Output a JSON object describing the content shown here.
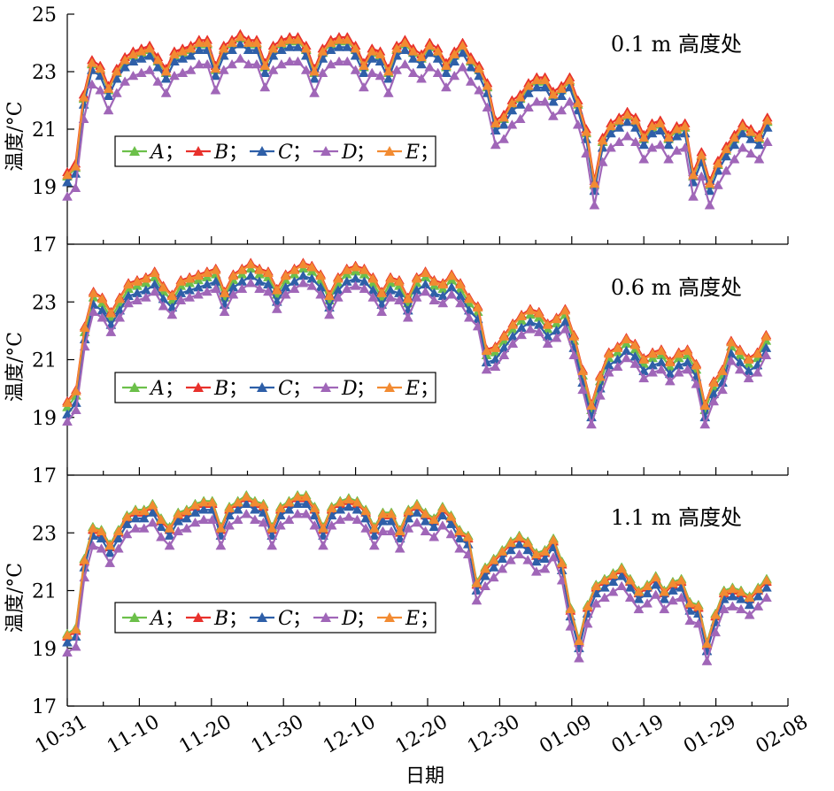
{
  "x_axis": {
    "label": "日期",
    "ticks": [
      "10-31",
      "11-10",
      "11-20",
      "11-30",
      "12-10",
      "12-20",
      "12-30",
      "01-09",
      "01-19",
      "01-29",
      "02-08"
    ]
  },
  "legend_separator": "；",
  "colors": {
    "A": "#6cc04a",
    "B": "#e8312c",
    "C": "#2e5fa8",
    "D": "#a066b8",
    "E": "#f28b32"
  },
  "chart_data": [
    {
      "type": "line",
      "title": "0.1 m 高度处",
      "ylabel": "温度/°C",
      "ylim": [
        17,
        25
      ],
      "yticks": [
        17,
        19,
        21,
        23,
        25
      ],
      "x_range_days": [
        0,
        100
      ],
      "base": [
        19.3,
        19.6,
        22.0,
        23.2,
        23.0,
        22.3,
        22.9,
        23.3,
        23.5,
        23.6,
        23.7,
        23.3,
        22.9,
        23.5,
        23.6,
        23.7,
        23.9,
        23.9,
        23.0,
        23.7,
        23.9,
        24.1,
        23.9,
        23.9,
        23.1,
        23.7,
        23.9,
        24.0,
        24.0,
        23.7,
        22.9,
        23.6,
        23.9,
        24.0,
        24.0,
        23.7,
        23.1,
        23.6,
        23.5,
        22.9,
        23.7,
        23.9,
        23.6,
        23.4,
        23.8,
        23.6,
        23.1,
        23.5,
        23.8,
        23.3,
        23.0,
        22.4,
        21.1,
        21.3,
        21.8,
        22.0,
        22.4,
        22.6,
        22.6,
        22.1,
        22.3,
        22.6,
        21.8,
        20.8,
        19.0,
        20.5,
        21.0,
        21.2,
        21.4,
        21.2,
        20.6,
        21.0,
        21.1,
        20.6,
        20.9,
        21.0,
        19.3,
        20.0,
        19.0,
        19.7,
        20.2,
        20.6,
        21.0,
        20.8,
        20.6,
        21.2
      ],
      "series": [
        {
          "name": "A",
          "offset": 0.05
        },
        {
          "name": "B",
          "offset": 0.2
        },
        {
          "name": "C",
          "offset": -0.15
        },
        {
          "name": "D",
          "offset": -0.65
        },
        {
          "name": "E",
          "offset": 0.1
        }
      ]
    },
    {
      "type": "line",
      "title": "0.6 m 高度处",
      "ylabel": "温度/°C",
      "ylim": [
        17,
        25
      ],
      "yticks": [
        17,
        19,
        21,
        23
      ],
      "x_range_days": [
        0,
        100
      ],
      "base": [
        19.3,
        19.7,
        21.9,
        23.1,
        22.9,
        22.4,
        22.9,
        23.4,
        23.5,
        23.6,
        23.8,
        23.3,
        23.0,
        23.5,
        23.6,
        23.7,
        23.8,
        23.9,
        23.1,
        23.7,
        23.9,
        24.1,
        23.9,
        23.8,
        23.2,
        23.7,
        23.9,
        24.1,
        24.0,
        23.7,
        23.0,
        23.6,
        23.9,
        24.0,
        23.9,
        23.6,
        23.1,
        23.6,
        23.5,
        22.9,
        23.6,
        23.8,
        23.5,
        23.4,
        23.7,
        23.4,
        22.9,
        22.6,
        21.1,
        21.2,
        21.6,
        22.0,
        22.3,
        22.5,
        22.4,
        22.0,
        22.2,
        22.5,
        21.6,
        20.4,
        19.2,
        20.2,
        21.0,
        21.2,
        21.5,
        21.3,
        20.8,
        21.0,
        21.1,
        20.7,
        21.0,
        21.1,
        20.6,
        19.2,
        20.0,
        20.4,
        21.4,
        21.1,
        20.8,
        21.0,
        21.6
      ],
      "series": [
        {
          "name": "A",
          "offset": 0.05
        },
        {
          "name": "B",
          "offset": 0.25
        },
        {
          "name": "C",
          "offset": -0.2
        },
        {
          "name": "D",
          "offset": -0.45
        },
        {
          "name": "E",
          "offset": 0.2
        }
      ]
    },
    {
      "type": "line",
      "title": "1.1 m 高度处",
      "ylabel": "温度/°C",
      "ylim": [
        17,
        25
      ],
      "yticks": [
        17,
        19,
        21,
        23
      ],
      "x_range_days": [
        0,
        100
      ],
      "base": [
        19.3,
        19.5,
        21.9,
        23.0,
        22.9,
        22.4,
        22.9,
        23.4,
        23.6,
        23.6,
        23.8,
        23.3,
        23.0,
        23.5,
        23.6,
        23.8,
        23.9,
        23.9,
        23.0,
        23.7,
        23.9,
        24.1,
        23.9,
        23.8,
        23.0,
        23.7,
        23.9,
        24.1,
        24.1,
        23.7,
        23.0,
        23.7,
        23.9,
        24.0,
        23.9,
        23.6,
        23.0,
        23.5,
        23.5,
        22.9,
        23.6,
        23.8,
        23.5,
        23.3,
        23.7,
        23.4,
        22.9,
        22.7,
        21.1,
        21.6,
        21.9,
        22.2,
        22.5,
        22.7,
        22.5,
        22.1,
        22.2,
        22.6,
        21.8,
        20.2,
        19.1,
        20.3,
        21.0,
        21.2,
        21.4,
        21.6,
        21.2,
        20.8,
        21.0,
        21.3,
        20.8,
        21.1,
        21.2,
        20.4,
        20.3,
        19.0,
        20.0,
        20.8,
        20.9,
        20.8,
        20.6,
        20.9,
        21.2
      ],
      "series": [
        {
          "name": "A",
          "offset": 0.2
        },
        {
          "name": "B",
          "offset": 0.1
        },
        {
          "name": "C",
          "offset": -0.1
        },
        {
          "name": "D",
          "offset": -0.45
        },
        {
          "name": "E",
          "offset": 0.15
        }
      ]
    }
  ]
}
